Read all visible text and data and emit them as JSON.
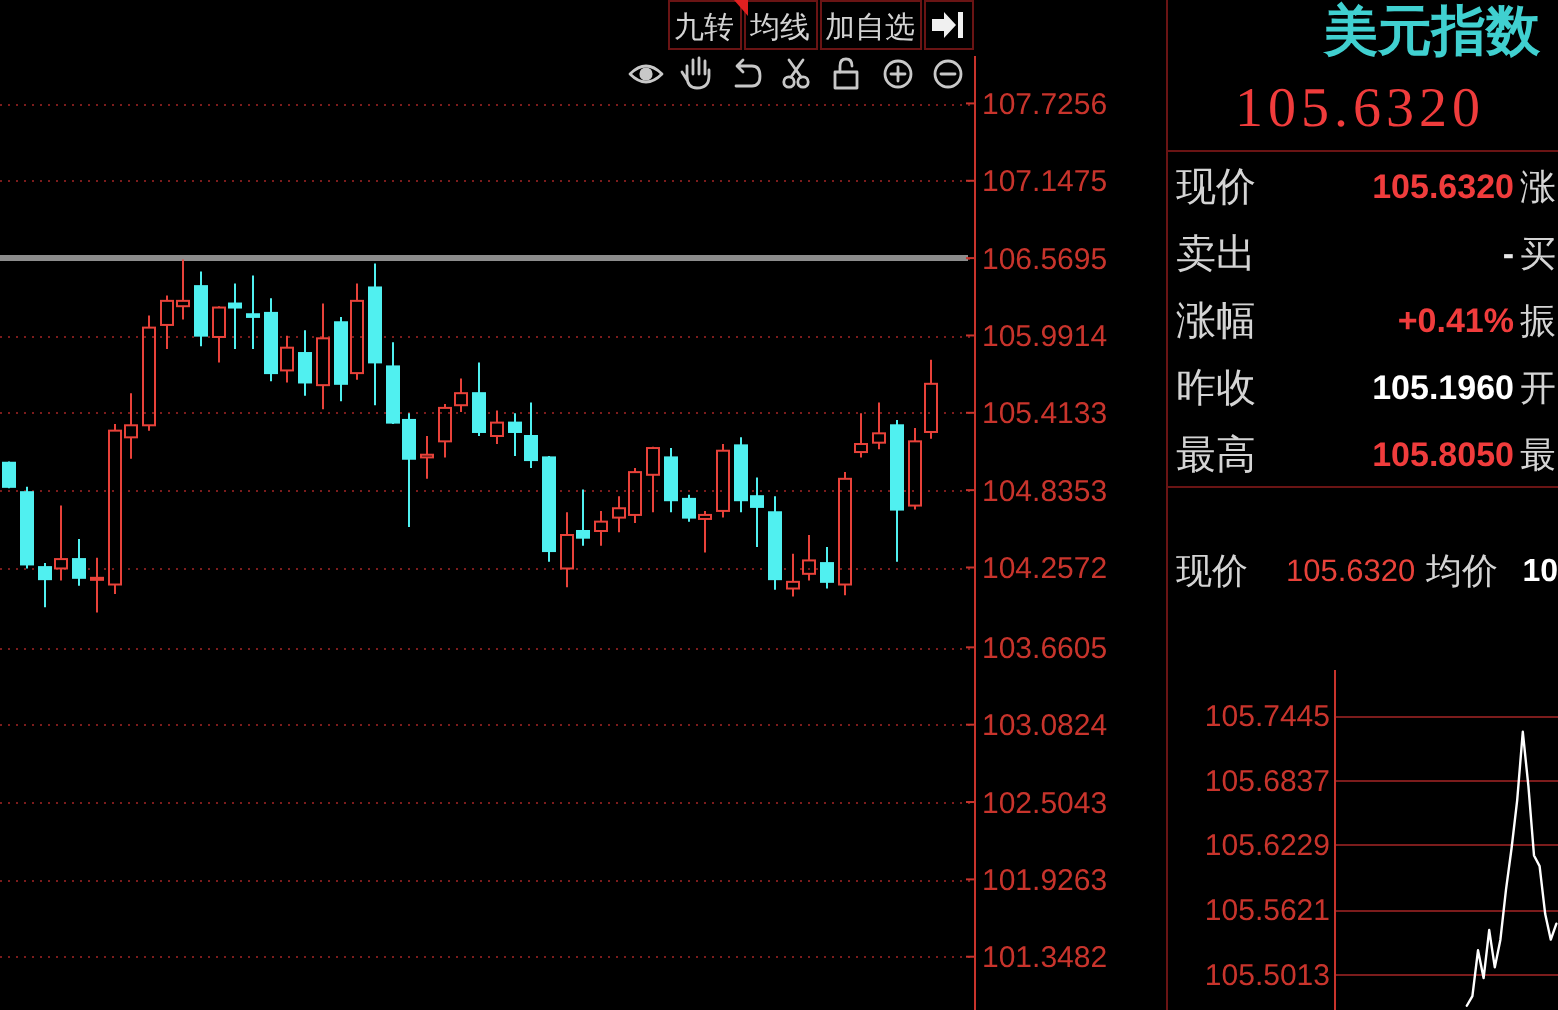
{
  "chart_data": [
    {
      "type": "candlestick",
      "categories": [
        null,
        null,
        null,
        null,
        null,
        null,
        null,
        null,
        null,
        null,
        null,
        null,
        null,
        null,
        null,
        null,
        null,
        null,
        null,
        null,
        null,
        null,
        null,
        null,
        null,
        null,
        null,
        null,
        null,
        null,
        null,
        null,
        null,
        null,
        null,
        null,
        null,
        null,
        null,
        null,
        null,
        null,
        null,
        null,
        null,
        null,
        null,
        null,
        null,
        null,
        null,
        null,
        null,
        null,
        null,
        null
      ],
      "ohlc": [
        [
          105.04,
          105.05,
          104.85,
          104.86
        ],
        [
          104.82,
          104.86,
          104.25,
          104.28
        ],
        [
          104.26,
          104.29,
          103.96,
          104.17
        ],
        [
          104.25,
          104.72,
          104.16,
          104.32
        ],
        [
          104.32,
          104.47,
          104.12,
          104.18
        ],
        [
          104.17,
          104.33,
          103.92,
          104.18
        ],
        [
          104.13,
          105.33,
          104.06,
          105.28
        ],
        [
          105.23,
          105.56,
          105.07,
          105.32
        ],
        [
          105.32,
          106.14,
          105.28,
          106.05
        ],
        [
          106.07,
          106.29,
          105.89,
          106.25
        ],
        [
          106.21,
          106.56,
          106.11,
          106.25
        ],
        [
          106.36,
          106.47,
          105.91,
          105.99
        ],
        [
          105.98,
          106.21,
          105.79,
          106.2
        ],
        [
          106.23,
          106.38,
          105.89,
          106.2
        ],
        [
          106.15,
          106.44,
          105.89,
          106.13
        ],
        [
          106.16,
          106.27,
          105.65,
          105.71
        ],
        [
          105.73,
          105.99,
          105.64,
          105.9
        ],
        [
          105.86,
          106.03,
          105.54,
          105.64
        ],
        [
          105.62,
          106.23,
          105.44,
          105.97
        ],
        [
          106.09,
          106.13,
          105.5,
          105.63
        ],
        [
          105.71,
          106.38,
          105.66,
          106.25
        ],
        [
          106.35,
          106.53,
          105.47,
          105.79
        ],
        [
          105.76,
          105.94,
          105.33,
          105.34
        ],
        [
          105.36,
          105.41,
          104.56,
          105.07
        ],
        [
          105.08,
          105.24,
          104.92,
          105.1
        ],
        [
          105.2,
          105.48,
          105.08,
          105.45
        ],
        [
          105.47,
          105.67,
          105.42,
          105.56
        ],
        [
          105.56,
          105.79,
          105.24,
          105.27
        ],
        [
          105.24,
          105.43,
          105.18,
          105.34
        ],
        [
          105.34,
          105.41,
          105.09,
          105.27
        ],
        [
          105.24,
          105.49,
          105.0,
          105.06
        ],
        [
          105.08,
          105.09,
          104.3,
          104.38
        ],
        [
          104.25,
          104.67,
          104.11,
          104.5
        ],
        [
          104.53,
          104.84,
          104.42,
          104.48
        ],
        [
          104.53,
          104.68,
          104.42,
          104.6
        ],
        [
          104.63,
          104.79,
          104.52,
          104.7
        ],
        [
          104.65,
          105.0,
          104.59,
          104.97
        ],
        [
          104.95,
          105.16,
          104.67,
          105.15
        ],
        [
          105.08,
          105.15,
          104.67,
          104.76
        ],
        [
          104.77,
          104.8,
          104.6,
          104.63
        ],
        [
          104.62,
          104.68,
          104.37,
          104.65
        ],
        [
          104.68,
          105.18,
          104.63,
          105.13
        ],
        [
          105.17,
          105.23,
          104.67,
          104.76
        ],
        [
          104.79,
          104.93,
          104.41,
          104.71
        ],
        [
          104.67,
          104.79,
          104.09,
          104.17
        ],
        [
          104.1,
          104.36,
          104.04,
          104.15
        ],
        [
          104.21,
          104.5,
          104.16,
          104.31
        ],
        [
          104.29,
          104.41,
          104.1,
          104.15
        ],
        [
          104.13,
          104.97,
          104.05,
          104.92
        ],
        [
          105.12,
          105.41,
          105.08,
          105.18
        ],
        [
          105.19,
          105.49,
          105.14,
          105.26
        ],
        [
          105.32,
          105.36,
          104.3,
          104.69
        ],
        [
          104.72,
          105.3,
          104.69,
          105.2
        ],
        [
          105.27,
          105.81,
          105.22,
          105.63
        ],
        null,
        null
      ],
      "colors": [
        "#50f0f0",
        "#50f0f0",
        "#50f0f0",
        "#e8423a",
        "#50f0f0",
        "#e8423a",
        "#e8423a",
        "#e8423a",
        "#e8423a",
        "#e8423a",
        "#e8423a",
        "#50f0f0",
        "#e8423a",
        "#50f0f0",
        "#50f0f0",
        "#50f0f0",
        "#e8423a",
        "#50f0f0",
        "#e8423a",
        "#50f0f0",
        "#e8423a",
        "#50f0f0",
        "#50f0f0",
        "#50f0f0",
        "#e8423a",
        "#e8423a",
        "#e8423a",
        "#50f0f0",
        "#e8423a",
        "#50f0f0",
        "#50f0f0",
        "#50f0f0",
        "#e8423a",
        "#50f0f0",
        "#e8423a",
        "#e8423a",
        "#e8423a",
        "#e8423a",
        "#50f0f0",
        "#50f0f0",
        "#e8423a",
        "#e8423a",
        "#50f0f0",
        "#50f0f0",
        "#50f0f0",
        "#e8423a",
        "#e8423a",
        "#50f0f0",
        "#e8423a",
        "#e8423a",
        "#e8423a",
        "#50f0f0",
        "#e8423a",
        "#e8423a",
        null,
        null
      ],
      "ylim": [
        100.95,
        108.08
      ],
      "yticks": [
        101.3482,
        101.9263,
        102.5043,
        103.0824,
        103.6605,
        104.2572,
        104.8353,
        105.4133,
        105.9914,
        106.5695,
        107.1475,
        107.7256
      ],
      "grid": "y",
      "tick_labels": "y",
      "ref_lines": [
        {
          "axis": "y",
          "value": 106.5695,
          "color": "#8c8c8c"
        }
      ],
      "annotations": [
        "九转",
        "均线",
        "加自选"
      ]
    },
    {
      "type": "other",
      "title": "美元指数",
      "annotations": [
        "105.6320",
        "现价",
        "105.6320",
        "涨",
        "卖出",
        "-",
        "买",
        "涨幅",
        "+0.41%",
        "振",
        "昨收",
        "105.1960",
        "开",
        "最高",
        "105.8050",
        "最"
      ]
    },
    {
      "type": "line",
      "categories": [
        null,
        null,
        null,
        null,
        null,
        null,
        null,
        null,
        null,
        null,
        null,
        null,
        null,
        null,
        null,
        null,
        null,
        null,
        null,
        null,
        null,
        null,
        null,
        null,
        null,
        null,
        null,
        null,
        null,
        null,
        null,
        null,
        null,
        null,
        null,
        null,
        null,
        null,
        null,
        null
      ],
      "values": [
        null,
        null,
        null,
        null,
        null,
        null,
        null,
        null,
        null,
        null,
        null,
        null,
        null,
        null,
        null,
        null,
        null,
        null,
        null,
        null,
        null,
        null,
        null,
        105.472,
        105.481,
        105.524,
        105.498,
        105.543,
        105.508,
        105.534,
        105.581,
        105.62,
        105.665,
        105.729,
        105.678,
        105.613,
        105.603,
        105.558,
        105.534,
        105.549
      ],
      "color": "#ffffff",
      "ylim": [
        105.468,
        105.787
      ],
      "yticks": [
        105.5013,
        105.5621,
        105.6229,
        105.6837,
        105.7445
      ],
      "grid": "y",
      "tick_labels": "y",
      "annotations": [
        "现价",
        "105.6320",
        "均价",
        "10"
      ]
    }
  ]
}
